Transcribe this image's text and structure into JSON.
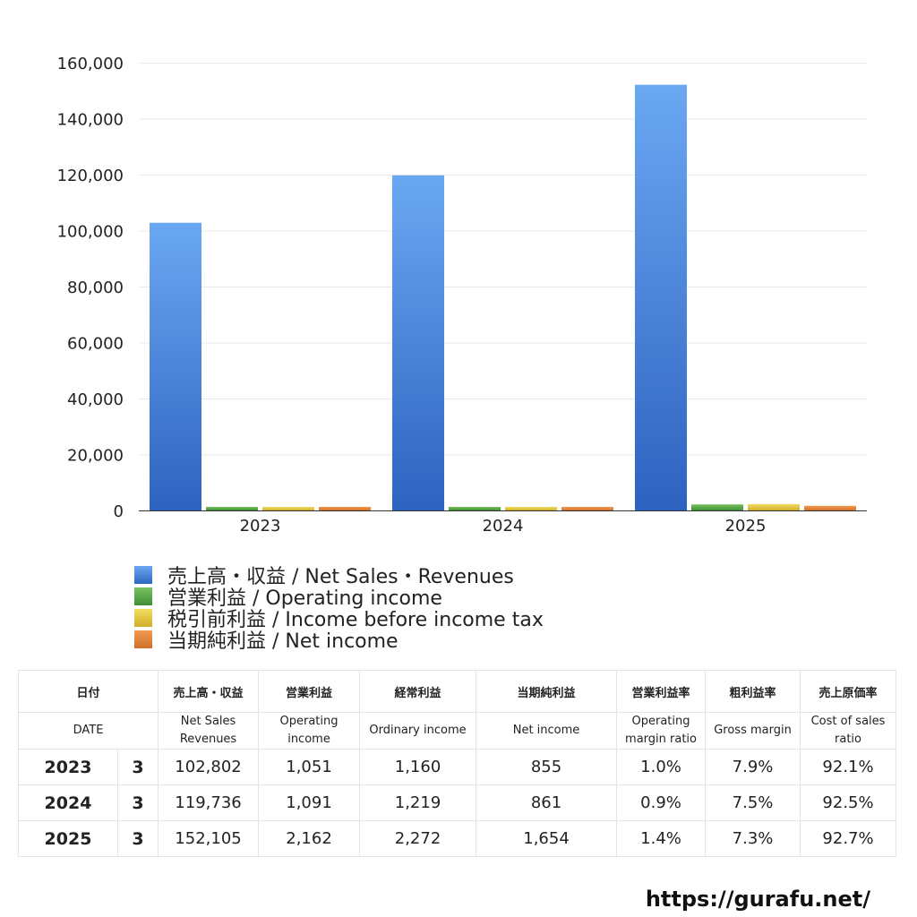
{
  "chart_data": {
    "type": "bar",
    "categories": [
      "2023",
      "2024",
      "2025"
    ],
    "series": [
      {
        "name": "売上高・収益 / Net Sales・Revenues",
        "color": "#4a86dd",
        "values": [
          102802,
          119736,
          152105
        ]
      },
      {
        "name": "営業利益 / Operating income",
        "color": "#5aa64a",
        "values": [
          1051,
          1091,
          2162
        ]
      },
      {
        "name": "税引前利益 / Income before income tax",
        "color": "#e6c843",
        "values": [
          1160,
          1219,
          2272
        ]
      },
      {
        "name": "当期純利益 / Net income",
        "color": "#e4843b",
        "values": [
          855,
          861,
          1654
        ]
      }
    ],
    "yticks": [
      "0",
      "20,000",
      "40,000",
      "60,000",
      "80,000",
      "100,000",
      "120,000",
      "140,000",
      "160,000"
    ],
    "ylim": [
      0,
      160000
    ],
    "grid": true,
    "legend_position": "bottom-left"
  },
  "legend": [
    {
      "label": "売上高・収益 / Net Sales・Revenues"
    },
    {
      "label": "営業利益 / Operating income"
    },
    {
      "label": "税引前利益 / Income before income tax"
    },
    {
      "label": "当期純利益 / Net income"
    }
  ],
  "table": {
    "header_ja": [
      "日付",
      "売上高・収益",
      "営業利益",
      "経常利益",
      "当期純利益",
      "営業利益率",
      "粗利益率",
      "売上原価率"
    ],
    "header_en": [
      "DATE",
      [
        "Net Sales",
        "Revenues"
      ],
      [
        "Operating",
        "income"
      ],
      [
        "Ordinary income"
      ],
      [
        "Net income"
      ],
      [
        "Operating",
        "margin ratio"
      ],
      [
        "Gross margin"
      ],
      [
        "Cost of sales",
        "ratio"
      ]
    ],
    "rows": [
      [
        "2023",
        "3",
        "102,802",
        "1,051",
        "1,160",
        "855",
        "1.0%",
        "7.9%",
        "92.1%"
      ],
      [
        "2024",
        "3",
        "119,736",
        "1,091",
        "1,219",
        "861",
        "0.9%",
        "7.5%",
        "92.5%"
      ],
      [
        "2025",
        "3",
        "152,105",
        "2,162",
        "2,272",
        "1,654",
        "1.4%",
        "7.3%",
        "92.7%"
      ]
    ]
  },
  "footer": {
    "url": "https://gurafu.net/"
  }
}
